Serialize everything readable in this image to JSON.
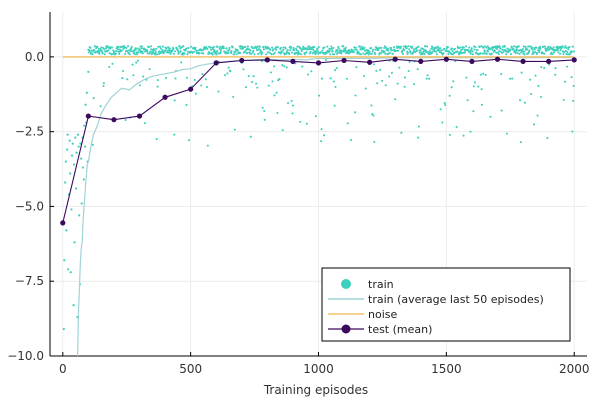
{
  "chart_data": {
    "type": "scatter",
    "title": "",
    "xlabel": "Training episodes",
    "ylabel": "",
    "xlim": [
      -50,
      2050
    ],
    "ylim": [
      -10.0,
      1.5
    ],
    "xticks": [
      0,
      500,
      1000,
      1500,
      2000
    ],
    "xtick_labels": [
      "0",
      "500",
      "1000",
      "1500",
      "2000"
    ],
    "yticks": [
      -10.0,
      -7.5,
      -5.0,
      -2.5,
      0.0
    ],
    "ytick_labels": [
      "−10.0",
      "−7.5",
      "−5.0",
      "−2.5",
      "0.0"
    ],
    "grid": true,
    "legend_position": "bottom-right",
    "series": [
      {
        "name": "train",
        "kind": "scatter",
        "color": "#3fd0bd",
        "description": "per-episode training reward; noisy early, clustered near 0.1–0.3 after ~100 episodes with a sparse tail down to about -3",
        "points": [
          [
            4,
            -9.1
          ],
          [
            6,
            -6.8
          ],
          [
            9,
            -4.2
          ],
          [
            12,
            -3.5
          ],
          [
            14,
            -5.8
          ],
          [
            17,
            -3.1
          ],
          [
            19,
            -2.6
          ],
          [
            21,
            -7.1
          ],
          [
            24,
            -4.6
          ],
          [
            27,
            -2.8
          ],
          [
            29,
            -3.9
          ],
          [
            31,
            -7.2
          ],
          [
            34,
            -5.1
          ],
          [
            36,
            -3.3
          ],
          [
            39,
            -2.9
          ],
          [
            42,
            -8.3
          ],
          [
            44,
            -3.6
          ],
          [
            46,
            -6.2
          ],
          [
            49,
            -2.7
          ],
          [
            52,
            -4.4
          ],
          [
            54,
            -3.2
          ],
          [
            57,
            -8.7
          ],
          [
            59,
            -2.6
          ],
          [
            62,
            -3.0
          ],
          [
            64,
            -5.3
          ],
          [
            67,
            -7.6
          ],
          [
            69,
            -2.9
          ],
          [
            72,
            -3.4
          ],
          [
            74,
            -4.9
          ],
          [
            77,
            -2.7
          ],
          [
            79,
            -3.7
          ],
          [
            82,
            -4.1
          ],
          [
            84,
            -2.3
          ],
          [
            87,
            -3.0
          ],
          [
            89,
            -1.6
          ],
          [
            92,
            -2.2
          ],
          [
            94,
            -1.2
          ],
          [
            97,
            -3.5
          ],
          [
            99,
            -2.0
          ],
          [
            100,
            -0.5
          ]
        ]
      },
      {
        "name": "train (average last 50 episodes)",
        "kind": "line",
        "color": "#9fd3d6",
        "points": [
          [
            58,
            -10.0
          ],
          [
            60,
            -9.2
          ],
          [
            62,
            -8.4
          ],
          [
            65,
            -7.8
          ],
          [
            68,
            -7.0
          ],
          [
            72,
            -6.4
          ],
          [
            76,
            -6.2
          ],
          [
            80,
            -5.4
          ],
          [
            85,
            -4.8
          ],
          [
            90,
            -4.2
          ],
          [
            96,
            -3.6
          ],
          [
            100,
            -3.5
          ],
          [
            110,
            -3.0
          ],
          [
            120,
            -2.6
          ],
          [
            135,
            -2.3
          ],
          [
            150,
            -1.9
          ],
          [
            170,
            -1.6
          ],
          [
            190,
            -1.35
          ],
          [
            210,
            -1.2
          ],
          [
            230,
            -1.05
          ],
          [
            260,
            -1.1
          ],
          [
            290,
            -0.9
          ],
          [
            320,
            -0.75
          ],
          [
            350,
            -0.65
          ],
          [
            380,
            -0.6
          ],
          [
            410,
            -0.55
          ],
          [
            440,
            -0.5
          ],
          [
            470,
            -0.42
          ],
          [
            500,
            -0.4
          ],
          [
            530,
            -0.3
          ],
          [
            560,
            -0.25
          ],
          [
            600,
            -0.2
          ],
          [
            650,
            -0.15
          ],
          [
            700,
            -0.12
          ],
          [
            750,
            -0.1
          ],
          [
            800,
            -0.08
          ],
          [
            850,
            -0.1
          ],
          [
            900,
            -0.08
          ],
          [
            950,
            -0.1
          ],
          [
            1000,
            -0.05
          ],
          [
            1100,
            -0.05
          ],
          [
            1200,
            -0.05
          ],
          [
            1300,
            -0.03
          ],
          [
            1400,
            -0.03
          ],
          [
            1500,
            -0.02
          ],
          [
            1600,
            -0.03
          ],
          [
            1700,
            -0.02
          ],
          [
            1800,
            -0.03
          ],
          [
            1900,
            -0.02
          ],
          [
            2000,
            -0.02
          ]
        ]
      },
      {
        "name": "noise",
        "kind": "line",
        "color": "#f3c26c",
        "points": [
          [
            0,
            0.0
          ],
          [
            2000,
            0.0
          ]
        ]
      },
      {
        "name": "test (mean)",
        "kind": "line+marker",
        "color": "#3b0a5f",
        "points": [
          [
            0,
            -5.55
          ],
          [
            100,
            -1.98
          ],
          [
            200,
            -2.1
          ],
          [
            300,
            -1.98
          ],
          [
            400,
            -1.35
          ],
          [
            500,
            -1.08
          ],
          [
            600,
            -0.2
          ],
          [
            700,
            -0.12
          ],
          [
            800,
            -0.1
          ],
          [
            900,
            -0.15
          ],
          [
            1000,
            -0.2
          ],
          [
            1100,
            -0.12
          ],
          [
            1200,
            -0.18
          ],
          [
            1300,
            -0.08
          ],
          [
            1400,
            -0.15
          ],
          [
            1500,
            -0.08
          ],
          [
            1600,
            -0.15
          ],
          [
            1700,
            -0.08
          ],
          [
            1800,
            -0.15
          ],
          [
            1900,
            -0.15
          ],
          [
            2000,
            -0.1
          ]
        ]
      }
    ]
  }
}
